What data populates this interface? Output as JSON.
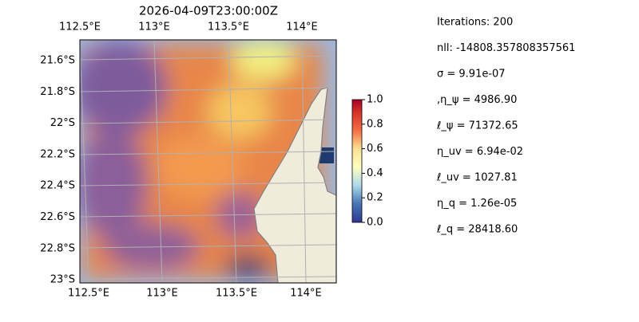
{
  "title": "2026-04-09T23:00:00Z",
  "map": {
    "lon_labels_top": [
      "112.5°E",
      "113°E",
      "113.5°E",
      "114°E"
    ],
    "lon_labels_bottom": [
      "112.5°E",
      "113°E",
      "113.5°E",
      "114°E"
    ],
    "lat_labels": [
      "21.6°S",
      "21.8°S",
      "22°S",
      "22.2°S",
      "22.4°S",
      "22.6°S",
      "22.8°S",
      "23°S"
    ]
  },
  "colorbar": {
    "lim": [
      0,
      1
    ],
    "ticks": [
      {
        "value": 0,
        "label": "0.0"
      },
      0.2,
      0.4,
      0.6,
      0.8,
      {
        "value": 1,
        "label": "1.0"
      }
    ]
  },
  "info": [
    "Iterations: 200",
    "nll: -14808.357808357561",
    "σ = 9.91e-07",
    ",η_ψ = 4986.90",
    "ℓ_ψ = 71372.65",
    "η_uv = 6.94e-02",
    "ℓ_uv = 1027.81",
    "η_q = 1.26e-05",
    "ℓ_q = 28418.60"
  ]
}
